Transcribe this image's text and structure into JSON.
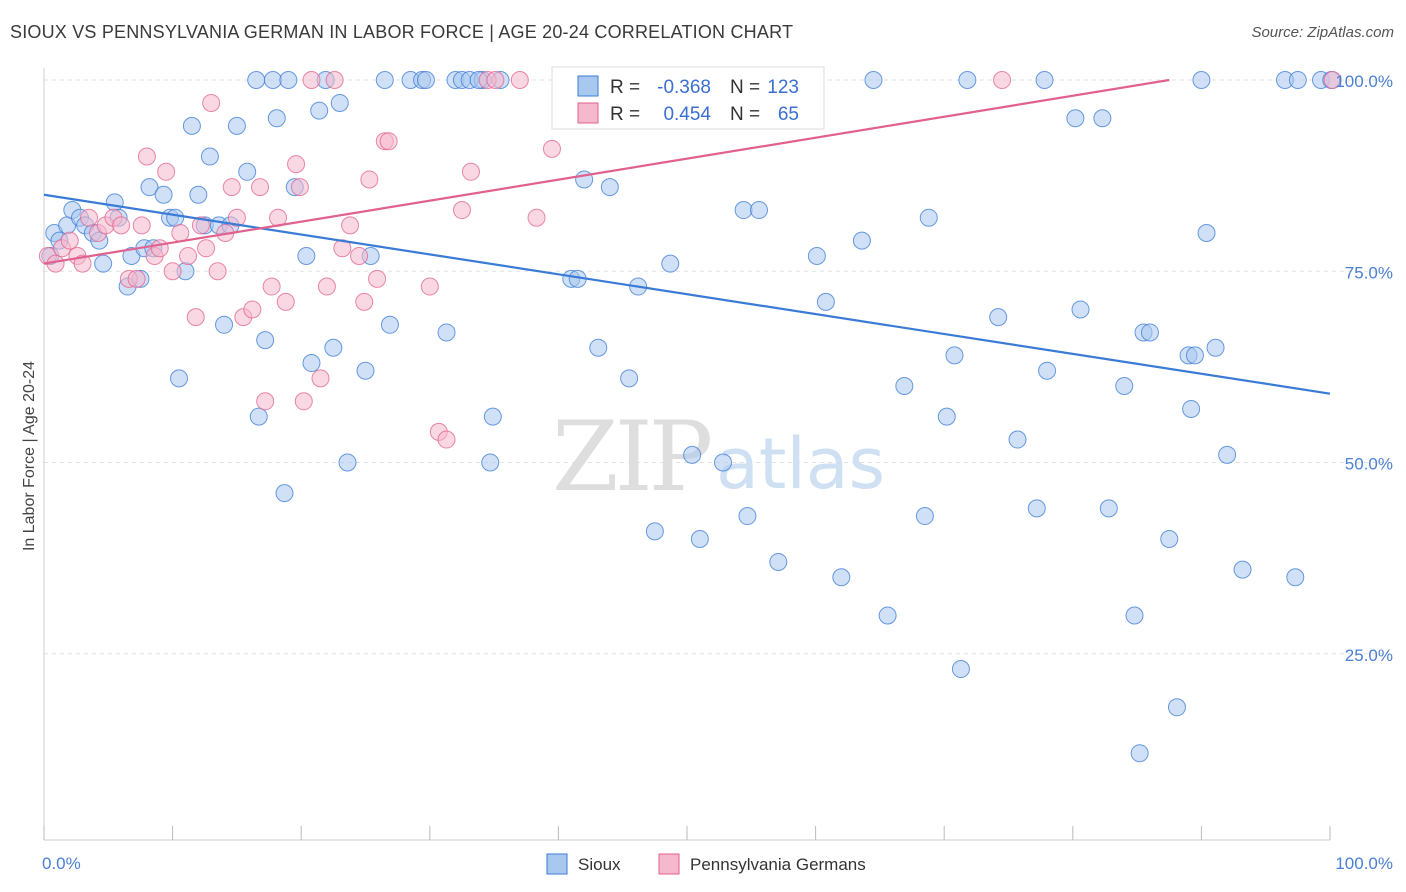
{
  "header": {
    "title": "SIOUX VS PENNSYLVANIA GERMAN IN LABOR FORCE | AGE 20-24 CORRELATION CHART",
    "source": "Source: ZipAtlas.com"
  },
  "watermark": {
    "zip": "ZIP",
    "atlas": "atlas"
  },
  "colors": {
    "sioux": "#3a7bd5",
    "sioux_fill": "#a9c8f0",
    "penn": "#e0618f",
    "penn_fill": "#f5b8cc",
    "grid": "#e2e2e2",
    "axis_text": "#4a7fd4"
  },
  "stats": {
    "sioux": {
      "r_label": "R =",
      "r_value": "-0.368",
      "n_label": "N =",
      "n_value": "123"
    },
    "penn": {
      "r_label": "R =",
      "r_value": "0.454",
      "n_label": "N =",
      "n_value": "65"
    }
  },
  "legend": {
    "sioux": "Sioux",
    "penn": "Pennsylvania Germans"
  },
  "chart_data": {
    "type": "scatter",
    "title": "SIOUX VS PENNSYLVANIA GERMAN IN LABOR FORCE | AGE 20-24 CORRELATION CHART",
    "xlabel": "",
    "ylabel": "In Labor Force | Age 20-24",
    "xlim": [
      0,
      100
    ],
    "ylim": [
      0,
      105
    ],
    "x_tick_labels": {
      "min": "0.0%",
      "max": "100.0%"
    },
    "y_ticks": [
      {
        "value": 25,
        "label": "25.0%"
      },
      {
        "value": 50,
        "label": "50.0%"
      },
      {
        "value": 75,
        "label": "75.0%"
      },
      {
        "value": 100,
        "label": "100.0%"
      }
    ],
    "grid": true,
    "legend_position": "bottom-center",
    "series": [
      {
        "name": "Sioux",
        "color": "#3a7bd5",
        "trend": {
          "x": [
            0,
            100
          ],
          "y": [
            85,
            59
          ]
        },
        "points": [
          [
            0.5,
            77
          ],
          [
            0.8,
            80
          ],
          [
            1.2,
            79
          ],
          [
            1.8,
            81
          ],
          [
            2.2,
            83
          ],
          [
            2.8,
            82
          ],
          [
            3.2,
            81
          ],
          [
            3.8,
            80
          ],
          [
            4.3,
            79
          ],
          [
            4.6,
            76
          ],
          [
            5.5,
            84
          ],
          [
            5.8,
            82
          ],
          [
            6.5,
            73
          ],
          [
            6.8,
            77
          ],
          [
            7.5,
            74
          ],
          [
            7.8,
            78
          ],
          [
            8.2,
            86
          ],
          [
            8.5,
            78
          ],
          [
            9.3,
            85
          ],
          [
            9.8,
            82
          ],
          [
            10.2,
            82
          ],
          [
            10.5,
            61
          ],
          [
            11,
            75
          ],
          [
            11.5,
            94
          ],
          [
            12,
            85
          ],
          [
            12.5,
            81
          ],
          [
            12.9,
            90
          ],
          [
            13.6,
            81
          ],
          [
            14,
            68
          ],
          [
            14.5,
            81
          ],
          [
            15,
            94
          ],
          [
            15.8,
            88
          ],
          [
            16.5,
            100
          ],
          [
            16.7,
            56
          ],
          [
            17.2,
            66
          ],
          [
            17.8,
            100
          ],
          [
            18.1,
            95
          ],
          [
            18.7,
            46
          ],
          [
            19,
            100
          ],
          [
            19.5,
            86
          ],
          [
            20.4,
            77
          ],
          [
            20.8,
            63
          ],
          [
            21.4,
            96
          ],
          [
            21.9,
            100
          ],
          [
            22.5,
            65
          ],
          [
            23.0,
            97
          ],
          [
            23.6,
            50
          ],
          [
            25.0,
            62
          ],
          [
            25.4,
            77
          ],
          [
            26.5,
            100
          ],
          [
            26.9,
            68
          ],
          [
            28.5,
            100
          ],
          [
            29.4,
            100
          ],
          [
            29.7,
            100
          ],
          [
            31.3,
            67
          ],
          [
            32.0,
            100
          ],
          [
            32.5,
            100
          ],
          [
            33.1,
            100
          ],
          [
            34.1,
            100
          ],
          [
            34.7,
            50
          ],
          [
            34.9,
            56
          ],
          [
            35.5,
            100
          ],
          [
            41.0,
            74
          ],
          [
            41.5,
            74
          ],
          [
            42.0,
            87
          ],
          [
            43.1,
            65
          ],
          [
            44.0,
            86
          ],
          [
            45.5,
            61
          ],
          [
            46.2,
            73
          ],
          [
            46.7,
            100
          ],
          [
            47.5,
            41
          ],
          [
            48.7,
            76
          ],
          [
            50.4,
            51
          ],
          [
            51.0,
            40
          ],
          [
            52.8,
            50
          ],
          [
            54.4,
            83
          ],
          [
            54.7,
            43
          ],
          [
            55.6,
            83
          ],
          [
            57.1,
            37
          ],
          [
            60.1,
            77
          ],
          [
            60.8,
            71
          ],
          [
            62.0,
            35
          ],
          [
            63.6,
            79
          ],
          [
            64.5,
            100
          ],
          [
            65.6,
            30
          ],
          [
            66.9,
            60
          ],
          [
            68.5,
            43
          ],
          [
            68.8,
            82
          ],
          [
            70.2,
            56
          ],
          [
            70.8,
            64
          ],
          [
            71.3,
            23
          ],
          [
            71.8,
            100
          ],
          [
            74.2,
            69
          ],
          [
            75.7,
            53
          ],
          [
            77.2,
            44
          ],
          [
            77.8,
            100
          ],
          [
            78.0,
            62
          ],
          [
            80.2,
            95
          ],
          [
            80.6,
            70
          ],
          [
            82.3,
            95
          ],
          [
            82.8,
            44
          ],
          [
            84.0,
            60
          ],
          [
            84.8,
            30
          ],
          [
            85.5,
            67
          ],
          [
            86.0,
            67
          ],
          [
            87.5,
            40
          ],
          [
            88.1,
            18
          ],
          [
            89.0,
            64
          ],
          [
            89.2,
            57
          ],
          [
            89.5,
            64
          ],
          [
            90.0,
            100
          ],
          [
            90.4,
            80
          ],
          [
            91.1,
            65
          ],
          [
            92.0,
            51
          ],
          [
            93.2,
            36
          ],
          [
            96.5,
            100
          ],
          [
            97.3,
            35
          ],
          [
            97.5,
            100
          ],
          [
            99.3,
            100
          ],
          [
            100.1,
            100
          ],
          [
            85.2,
            12
          ],
          [
            40.9,
            100
          ],
          [
            33.8,
            100
          ]
        ]
      },
      {
        "name": "Pennsylvania Germans",
        "color": "#e0618f",
        "trend": {
          "x": [
            0,
            87.5
          ],
          "y": [
            76,
            100
          ]
        },
        "points": [
          [
            0.3,
            77
          ],
          [
            0.9,
            76
          ],
          [
            1.4,
            78
          ],
          [
            2.0,
            79
          ],
          [
            2.6,
            77
          ],
          [
            3.0,
            76
          ],
          [
            3.5,
            82
          ],
          [
            4.2,
            80
          ],
          [
            4.8,
            81
          ],
          [
            5.4,
            82
          ],
          [
            6.0,
            81
          ],
          [
            6.6,
            74
          ],
          [
            7.2,
            74
          ],
          [
            7.6,
            81
          ],
          [
            8.0,
            90
          ],
          [
            8.6,
            77
          ],
          [
            9.0,
            78
          ],
          [
            9.5,
            88
          ],
          [
            10.0,
            75
          ],
          [
            10.6,
            80
          ],
          [
            11.2,
            77
          ],
          [
            11.8,
            69
          ],
          [
            12.2,
            81
          ],
          [
            12.6,
            78
          ],
          [
            13.0,
            97
          ],
          [
            13.5,
            75
          ],
          [
            14.1,
            80
          ],
          [
            14.6,
            86
          ],
          [
            15.0,
            82
          ],
          [
            15.5,
            69
          ],
          [
            16.2,
            70
          ],
          [
            16.8,
            86
          ],
          [
            17.2,
            58
          ],
          [
            17.7,
            73
          ],
          [
            18.2,
            82
          ],
          [
            18.8,
            71
          ],
          [
            19.6,
            89
          ],
          [
            19.9,
            86
          ],
          [
            20.2,
            58
          ],
          [
            20.8,
            100
          ],
          [
            21.5,
            61
          ],
          [
            22.0,
            73
          ],
          [
            22.6,
            100
          ],
          [
            23.2,
            78
          ],
          [
            23.8,
            81
          ],
          [
            24.5,
            77
          ],
          [
            24.9,
            71
          ],
          [
            25.3,
            87
          ],
          [
            25.9,
            74
          ],
          [
            26.5,
            92
          ],
          [
            26.8,
            92
          ],
          [
            30.0,
            73
          ],
          [
            30.7,
            54
          ],
          [
            31.3,
            53
          ],
          [
            32.5,
            83
          ],
          [
            33.2,
            88
          ],
          [
            34.5,
            100
          ],
          [
            35.1,
            100
          ],
          [
            37.0,
            100
          ],
          [
            38.3,
            82
          ],
          [
            39.5,
            91
          ],
          [
            42.3,
            100
          ],
          [
            58.0,
            100
          ],
          [
            74.5,
            100
          ],
          [
            100.2,
            100
          ]
        ]
      }
    ]
  }
}
